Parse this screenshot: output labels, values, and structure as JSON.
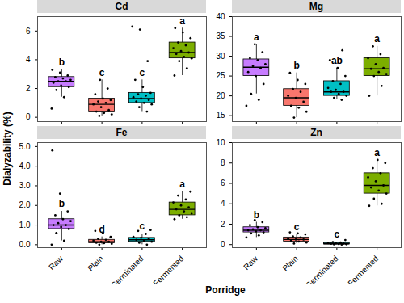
{
  "chart_data": {
    "type": "boxplot",
    "x_label": "Porridge",
    "y_label": "Dialyzability (%)",
    "categories": [
      "Raw",
      "Plain",
      "Germinated",
      "Fermented"
    ],
    "colors": [
      "#C77CFF",
      "#F8766D",
      "#00BFC4",
      "#7CAE00"
    ],
    "panels": [
      {
        "title": "Cd",
        "ylim": [
          -0.3,
          7
        ],
        "yticks": [
          0,
          2,
          4,
          6
        ],
        "boxes": [
          {
            "q1": 2.1,
            "median": 2.5,
            "q3": 2.8,
            "whisker_low": 1.4,
            "whisker_high": 3.3,
            "letter": "b",
            "points": [
              0.6,
              1.4,
              1.9,
              2.1,
              2.2,
              2.4,
              2.5,
              2.5,
              2.6,
              2.7,
              2.8,
              2.9,
              3.1,
              3.3
            ]
          },
          {
            "q1": 0.4,
            "median": 0.9,
            "q3": 1.3,
            "whisker_low": 0.1,
            "whisker_high": 2.6,
            "letter": "c",
            "points": [
              0.1,
              0.2,
              0.3,
              0.4,
              0.5,
              0.7,
              0.9,
              1.0,
              1.1,
              1.2,
              1.3,
              1.6,
              2.0,
              2.6
            ]
          },
          {
            "q1": 1.0,
            "median": 1.3,
            "q3": 1.7,
            "whisker_low": 0.4,
            "whisker_high": 2.6,
            "letter": "c",
            "points": [
              0.4,
              0.7,
              0.9,
              1.0,
              1.1,
              1.2,
              1.3,
              1.4,
              1.5,
              1.6,
              1.7,
              2.1,
              2.6,
              3.9,
              6.1,
              6.3
            ]
          },
          {
            "q1": 4.1,
            "median": 4.5,
            "q3": 5.2,
            "whisker_low": 2.9,
            "whisker_high": 6.2,
            "letter": "a",
            "points": [
              2.9,
              3.4,
              3.9,
              4.1,
              4.2,
              4.4,
              4.5,
              4.6,
              4.8,
              5.0,
              5.2,
              5.5,
              5.9,
              6.2
            ]
          }
        ]
      },
      {
        "title": "Mg",
        "ylim": [
          13.5,
          40
        ],
        "yticks": [
          15,
          20,
          25,
          30,
          35,
          40
        ],
        "boxes": [
          {
            "q1": 25,
            "median": 27.2,
            "q3": 29.2,
            "whisker_low": 20.5,
            "whisker_high": 33,
            "letter": "a",
            "points": [
              17.5,
              19,
              20.5,
              23,
              25,
              26,
              27,
              27.5,
              28,
              29,
              29.5,
              31,
              33
            ]
          },
          {
            "q1": 17.5,
            "median": 19.5,
            "q3": 21.7,
            "whisker_low": 14.5,
            "whisker_high": 25.8,
            "letter": "b",
            "points": [
              14.5,
              16,
              17,
              17.5,
              18.5,
              19.5,
              20,
              21,
              21.7,
              23,
              24,
              25.8
            ]
          },
          {
            "q1": 20,
            "median": 21,
            "q3": 23.7,
            "whisker_low": 19,
            "whisker_high": 27,
            "letter": "ab",
            "points": [
              19,
              19.5,
              20,
              20.5,
              21,
              21,
              21.5,
              22,
              23,
              23.7,
              25,
              27,
              29,
              31.5
            ]
          },
          {
            "q1": 25,
            "median": 26.8,
            "q3": 29.5,
            "whisker_low": 20,
            "whisker_high": 32.5,
            "letter": "a",
            "points": [
              20,
              22.5,
              25,
              25.5,
              26,
              26.8,
              27,
              28,
              29.5,
              30.5,
              32.5
            ]
          }
        ]
      },
      {
        "title": "Fe",
        "ylim": [
          -0.15,
          5.2
        ],
        "yticks": [
          0,
          1,
          2,
          3,
          4,
          5
        ],
        "boxes": [
          {
            "q1": 0.8,
            "median": 1.0,
            "q3": 1.3,
            "whisker_low": 0.2,
            "whisker_high": 1.7,
            "letter": "b",
            "points": [
              0.0,
              0.2,
              0.6,
              0.8,
              0.9,
              1.0,
              1.0,
              1.1,
              1.2,
              1.3,
              1.5,
              1.7,
              2.6,
              4.8
            ]
          },
          {
            "q1": 0.08,
            "median": 0.15,
            "q3": 0.25,
            "whisker_low": 0.0,
            "whisker_high": 0.4,
            "letter": "d",
            "points": [
              0.0,
              0.05,
              0.08,
              0.1,
              0.15,
              0.15,
              0.2,
              0.25,
              0.3,
              0.4,
              0.6,
              0.7
            ]
          },
          {
            "q1": 0.15,
            "median": 0.25,
            "q3": 0.35,
            "whisker_low": 0.0,
            "whisker_high": 0.55,
            "letter": "c",
            "points": [
              0.0,
              0.1,
              0.15,
              0.2,
              0.25,
              0.3,
              0.35,
              0.4,
              0.55,
              0.7,
              0.75
            ]
          },
          {
            "q1": 1.5,
            "median": 1.8,
            "q3": 2.15,
            "whisker_low": 1.3,
            "whisker_high": 2.7,
            "letter": "a",
            "points": [
              1.3,
              1.4,
              1.5,
              1.6,
              1.7,
              1.8,
              1.9,
              2.0,
              2.15,
              2.3,
              2.5,
              2.7
            ]
          }
        ]
      },
      {
        "title": "Zn",
        "ylim": [
          -0.3,
          10
        ],
        "yticks": [
          0,
          2,
          4,
          6,
          8,
          10
        ],
        "boxes": [
          {
            "q1": 1.2,
            "median": 1.4,
            "q3": 1.7,
            "whisker_low": 0.7,
            "whisker_high": 2.2,
            "letter": "b",
            "points": [
              0.7,
              0.9,
              1.1,
              1.2,
              1.3,
              1.4,
              1.4,
              1.5,
              1.6,
              1.7,
              1.9,
              2.2,
              2.4
            ]
          },
          {
            "q1": 0.3,
            "median": 0.5,
            "q3": 0.7,
            "whisker_low": 0.1,
            "whisker_high": 1.0,
            "letter": "c",
            "points": [
              0.1,
              0.2,
              0.3,
              0.4,
              0.5,
              0.5,
              0.6,
              0.7,
              0.8,
              1.0,
              1.1,
              1.2
            ]
          },
          {
            "q1": 0.03,
            "median": 0.08,
            "q3": 0.15,
            "whisker_low": 0.0,
            "whisker_high": 0.25,
            "letter": "c",
            "points": [
              0.0,
              0.02,
              0.03,
              0.05,
              0.08,
              0.1,
              0.12,
              0.15,
              0.2,
              0.25,
              0.45
            ]
          },
          {
            "q1": 5.0,
            "median": 5.8,
            "q3": 7.0,
            "whisker_low": 3.8,
            "whisker_high": 8.3,
            "letter": "a",
            "points": [
              3.8,
              4.0,
              4.5,
              5.0,
              5.3,
              5.6,
              5.8,
              6.2,
              6.6,
              7.0,
              7.5,
              8.0,
              8.3
            ]
          }
        ]
      }
    ]
  }
}
